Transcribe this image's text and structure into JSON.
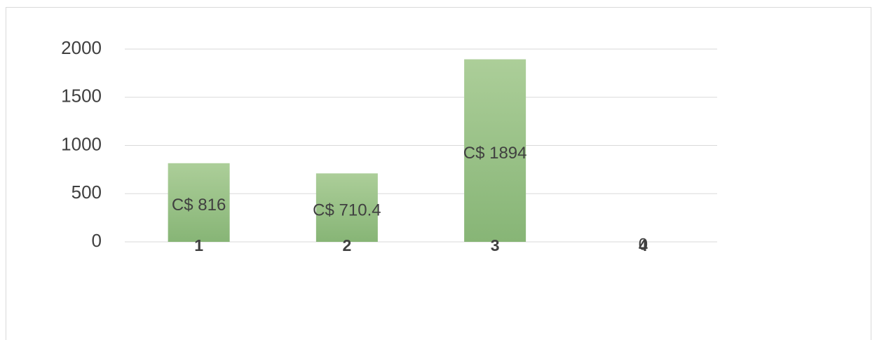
{
  "chart_data": {
    "type": "bar",
    "categories": [
      "1",
      "2",
      "3",
      "4"
    ],
    "values": [
      816,
      710.4,
      1894,
      0
    ],
    "value_labels": [
      "C$ 816",
      "C$ 710.4",
      "C$ 1894",
      "0"
    ],
    "color": "#9cc387",
    "ylim": [
      0,
      2000
    ],
    "yticks": [
      0,
      500,
      1000,
      1500,
      2000
    ],
    "grid": true
  }
}
